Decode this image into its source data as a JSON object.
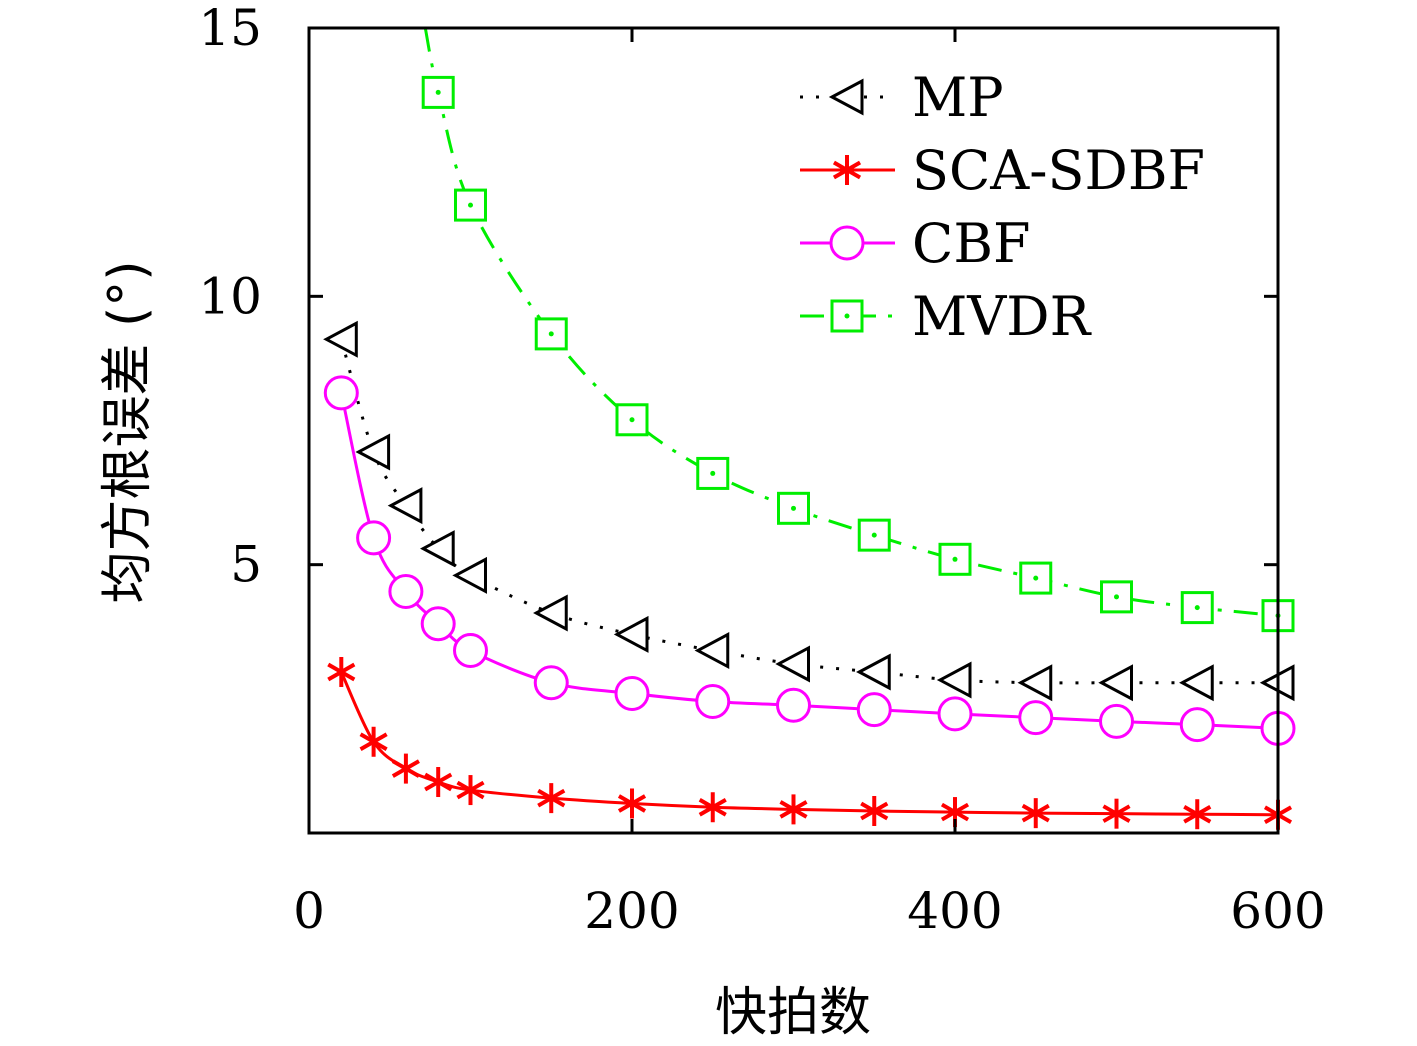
{
  "chart_data": {
    "type": "line",
    "title": "",
    "xlabel": "快拍数",
    "ylabel": "均方根误差 (°)",
    "xlim": [
      0,
      600
    ],
    "ylim": [
      0,
      15
    ],
    "xticks": [
      0,
      200,
      400,
      600
    ],
    "yticks": [
      5,
      10,
      15
    ],
    "grid": false,
    "legend_position": "top-right",
    "x": [
      20,
      40,
      60,
      80,
      100,
      150,
      200,
      250,
      300,
      350,
      400,
      450,
      500,
      550,
      600
    ],
    "series": [
      {
        "name": "MP",
        "color": "#000000",
        "marker": "triangle-left",
        "line": "dotted",
        "values": [
          9.2,
          7.1,
          6.1,
          5.3,
          4.8,
          4.1,
          3.7,
          3.4,
          3.15,
          3.0,
          2.85,
          2.8,
          2.8,
          2.8,
          2.8
        ]
      },
      {
        "name": "SCA-SDBF",
        "color": "#ff0000",
        "marker": "asterisk",
        "line": "solid",
        "values": [
          3.0,
          1.7,
          1.2,
          0.95,
          0.8,
          0.65,
          0.55,
          0.48,
          0.44,
          0.41,
          0.39,
          0.37,
          0.36,
          0.35,
          0.34
        ]
      },
      {
        "name": "CBF",
        "color": "#ff00ff",
        "marker": "circle",
        "line": "solid",
        "values": [
          8.2,
          5.5,
          4.5,
          3.9,
          3.4,
          2.8,
          2.6,
          2.45,
          2.38,
          2.3,
          2.22,
          2.15,
          2.08,
          2.02,
          1.95
        ]
      },
      {
        "name": "MVDR",
        "color": "#00ee00",
        "marker": "square-dot",
        "line": "dash-dot",
        "values": [
          null,
          null,
          null,
          13.8,
          11.7,
          9.3,
          7.7,
          6.7,
          6.05,
          5.55,
          5.1,
          4.75,
          4.4,
          4.2,
          4.05
        ]
      }
    ],
    "mvdr_curve_start": {
      "x": 72,
      "y": 15
    }
  }
}
